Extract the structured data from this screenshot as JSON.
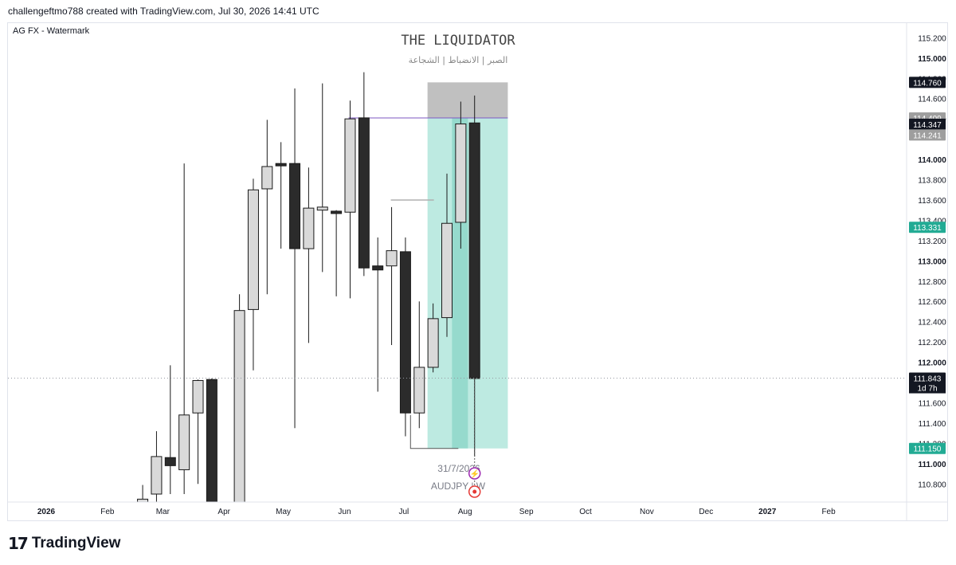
{
  "header": {
    "attribution": "challengeftmo788 created with TradingView.com, Jul 30, 2026 14:41 UTC"
  },
  "legend": {
    "label": "AG FX - Watermark"
  },
  "watermark": {
    "title": "THE LIQUIDATOR",
    "subtitle": "الصبر | الانضباط | الشجاعة",
    "date": "31/7/2026",
    "symbol": "AUDJPY | W"
  },
  "footer": {
    "logo_mark": "17",
    "logo_text": "TradingView"
  },
  "colors": {
    "bull_fill": "#d9d9d9",
    "bear_fill": "#2b2b2b",
    "wick": "#1a1a1a",
    "target_zone": "#b2e6dc",
    "stop_zone": "#bdbdbd",
    "accent_green": "#22ab94",
    "entry_line": "#7e57c2"
  },
  "chart_data": {
    "type": "candlestick",
    "symbol": "AUDJPY",
    "timeframe": "W",
    "ylim": [
      110.7,
      115.25
    ],
    "y_ticks": [
      "115.200",
      "115.000",
      "114.800",
      "114.600",
      "114.400",
      "114.000",
      "113.800",
      "113.600",
      "113.400",
      "113.200",
      "113.000",
      "112.800",
      "112.600",
      "112.400",
      "112.200",
      "112.000",
      "111.600",
      "111.400",
      "111.200",
      "111.000",
      "110.800"
    ],
    "x_ticks": [
      "2026",
      "Feb",
      "Mar",
      "Apr",
      "May",
      "Jun",
      "Jul",
      "Aug",
      "Sep",
      "Oct",
      "Nov",
      "Dec",
      "2027",
      "Feb"
    ],
    "price_labels": [
      {
        "text": "114.760",
        "value": 114.76,
        "color": "#131722"
      },
      {
        "text": "114.409",
        "value": 114.409,
        "color": "#9e9e9e"
      },
      {
        "text": "114.347",
        "value": 114.347,
        "color": "#131722"
      },
      {
        "text": "114.241",
        "value": 114.241,
        "color": "#9e9e9e"
      },
      {
        "text": "113.331",
        "value": 113.331,
        "color": "#22ab94"
      },
      {
        "text": "111.843",
        "value": 111.843,
        "color": "#131722"
      },
      {
        "text": "111.150",
        "value": 111.15,
        "color": "#22ab94"
      }
    ],
    "countdown": "1d 7h",
    "current_price": 111.843,
    "candles": [
      {
        "week": "2026-02-16",
        "open": 110.62,
        "high": 110.79,
        "low": 110.5,
        "close": 110.65
      },
      {
        "week": "2026-02-23",
        "open": 110.7,
        "high": 111.32,
        "low": 110.4,
        "close": 111.07
      },
      {
        "week": "2026-03-02",
        "open": 111.06,
        "high": 111.97,
        "low": 110.7,
        "close": 110.98
      },
      {
        "week": "2026-03-09",
        "open": 110.94,
        "high": 113.96,
        "low": 110.7,
        "close": 111.48
      },
      {
        "week": "2026-03-16",
        "open": 111.5,
        "high": 111.83,
        "low": 110.8,
        "close": 111.82
      },
      {
        "week": "2026-03-23",
        "open": 111.83,
        "high": 111.84,
        "low": 110.6,
        "close": 110.6
      },
      {
        "week": "2026-04-06",
        "open": 110.6,
        "high": 112.67,
        "low": 110.4,
        "close": 112.51
      },
      {
        "week": "2026-04-13",
        "open": 112.52,
        "high": 113.81,
        "low": 111.92,
        "close": 113.7
      },
      {
        "week": "2026-04-20",
        "open": 113.71,
        "high": 114.39,
        "low": 112.67,
        "close": 113.93
      },
      {
        "week": "2026-04-27",
        "open": 113.96,
        "high": 114.17,
        "low": 113.12,
        "close": 113.95
      },
      {
        "week": "2026-05-04",
        "open": 113.96,
        "high": 114.7,
        "low": 111.35,
        "close": 113.12
      },
      {
        "week": "2026-05-11",
        "open": 113.12,
        "high": 113.92,
        "low": 112.19,
        "close": 113.52
      },
      {
        "week": "2026-05-18",
        "open": 113.5,
        "high": 114.75,
        "low": 112.89,
        "close": 113.53
      },
      {
        "week": "2026-05-25",
        "open": 113.49,
        "high": 113.5,
        "low": 112.65,
        "close": 113.48
      },
      {
        "week": "2026-06-01",
        "open": 113.48,
        "high": 114.58,
        "low": 112.63,
        "close": 114.4
      },
      {
        "week": "2026-06-08",
        "open": 114.41,
        "high": 114.86,
        "low": 112.85,
        "close": 112.93
      },
      {
        "week": "2026-06-15",
        "open": 112.95,
        "high": 113.23,
        "low": 111.71,
        "close": 112.91
      },
      {
        "week": "2026-06-22",
        "open": 112.95,
        "high": 113.53,
        "low": 112.17,
        "close": 113.1
      },
      {
        "week": "2026-06-29",
        "open": 113.09,
        "high": 113.23,
        "low": 111.27,
        "close": 111.5
      },
      {
        "week": "2026-07-06",
        "open": 111.5,
        "high": 112.6,
        "low": 111.35,
        "close": 111.95
      },
      {
        "week": "2026-07-13",
        "open": 111.95,
        "high": 112.58,
        "low": 111.9,
        "close": 112.43
      },
      {
        "week": "2026-07-20",
        "open": 112.44,
        "high": 113.86,
        "low": 112.25,
        "close": 113.37
      },
      {
        "week": "2026-07-27",
        "open": 113.38,
        "high": 114.57,
        "low": 113.12,
        "close": 114.35
      },
      {
        "week": "2026-08-03",
        "open": 114.36,
        "high": 114.63,
        "low": 111.07,
        "close": 111.84
      }
    ],
    "position": {
      "side": "short",
      "stop": 114.76,
      "entry": 114.409,
      "target": 111.15,
      "start_week": "2026-07-13",
      "end_week": "2026-08-17"
    },
    "range_marker": {
      "high": 113.6,
      "low": 111.15
    }
  }
}
